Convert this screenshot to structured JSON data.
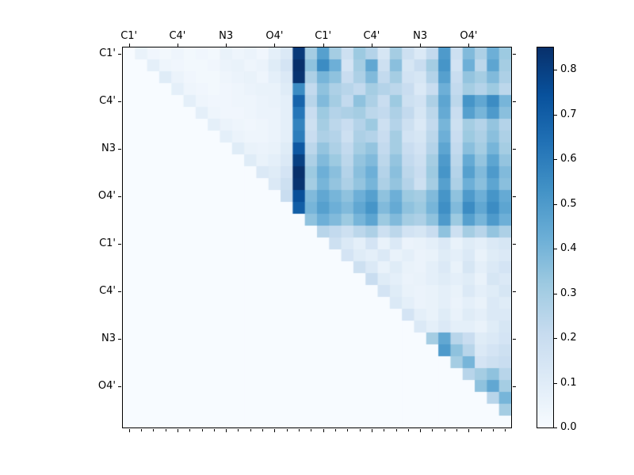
{
  "figure": {
    "background": "#ffffff",
    "axis_color": "#000000"
  },
  "chart_data": {
    "type": "heatmap",
    "title": "",
    "size": 32,
    "x_tick_labels": [
      "C1'",
      "C4'",
      "N3",
      "O4'",
      "C1'",
      "C4'",
      "N3",
      "O4'"
    ],
    "y_tick_labels": [
      "C1'",
      "C4'",
      "N3",
      "O4'",
      "C1'",
      "C4'",
      "N3",
      "O4'"
    ],
    "tick_positions": [
      0,
      4,
      8,
      12,
      16,
      20,
      24,
      28
    ],
    "vmin": 0.0,
    "vmax": 0.85,
    "colormap": "Blues",
    "colormap_stops": [
      "#f7fbff",
      "#deebf7",
      "#c6dbef",
      "#9ecae1",
      "#6baed6",
      "#4292c6",
      "#2171b5",
      "#08519c",
      "#08306b"
    ],
    "colorbar": {
      "tick_values": [
        0.0,
        0.1,
        0.2,
        0.3,
        0.4,
        0.5,
        0.6,
        0.7,
        0.8
      ],
      "tick_labels": [
        "0.0",
        "0.1",
        "0.2",
        "0.3",
        "0.4",
        "0.5",
        "0.6",
        "0.7",
        "0.8"
      ]
    },
    "matrix": [
      [
        0,
        0.06,
        0.03,
        0.02,
        0.04,
        0.02,
        0.03,
        0.02,
        0.06,
        0.04,
        0.05,
        0.03,
        0.08,
        0.12,
        0.82,
        0.3,
        0.48,
        0.3,
        0.18,
        0.32,
        0.26,
        0.14,
        0.3,
        0.18,
        0.12,
        0.22,
        0.5,
        0.18,
        0.38,
        0.28,
        0.42,
        0.32
      ],
      [
        0,
        0,
        0.08,
        0.04,
        0.03,
        0.02,
        0.02,
        0.03,
        0.05,
        0.06,
        0.04,
        0.05,
        0.1,
        0.15,
        0.85,
        0.35,
        0.55,
        0.42,
        0.15,
        0.3,
        0.45,
        0.18,
        0.36,
        0.14,
        0.2,
        0.3,
        0.52,
        0.16,
        0.42,
        0.24,
        0.46,
        0.3
      ],
      [
        0,
        0,
        0,
        0.1,
        0.05,
        0.03,
        0.02,
        0.02,
        0.04,
        0.05,
        0.06,
        0.04,
        0.08,
        0.12,
        0.84,
        0.28,
        0.4,
        0.35,
        0.2,
        0.28,
        0.38,
        0.22,
        0.3,
        0.16,
        0.14,
        0.26,
        0.48,
        0.2,
        0.34,
        0.3,
        0.38,
        0.28
      ],
      [
        0,
        0,
        0,
        0,
        0.08,
        0.04,
        0.03,
        0.02,
        0.03,
        0.04,
        0.05,
        0.06,
        0.06,
        0.1,
        0.55,
        0.22,
        0.35,
        0.28,
        0.25,
        0.22,
        0.3,
        0.26,
        0.24,
        0.2,
        0.12,
        0.2,
        0.42,
        0.22,
        0.3,
        0.26,
        0.32,
        0.24
      ],
      [
        0,
        0,
        0,
        0,
        0,
        0.08,
        0.04,
        0.03,
        0.03,
        0.04,
        0.04,
        0.05,
        0.06,
        0.08,
        0.68,
        0.25,
        0.38,
        0.3,
        0.22,
        0.35,
        0.28,
        0.2,
        0.32,
        0.18,
        0.16,
        0.28,
        0.46,
        0.24,
        0.52,
        0.45,
        0.55,
        0.4
      ],
      [
        0,
        0,
        0,
        0,
        0,
        0,
        0.08,
        0.04,
        0.03,
        0.03,
        0.04,
        0.05,
        0.05,
        0.08,
        0.62,
        0.2,
        0.32,
        0.26,
        0.28,
        0.3,
        0.24,
        0.22,
        0.28,
        0.22,
        0.14,
        0.24,
        0.44,
        0.2,
        0.48,
        0.4,
        0.5,
        0.36
      ],
      [
        0,
        0,
        0,
        0,
        0,
        0,
        0,
        0.08,
        0.05,
        0.04,
        0.03,
        0.04,
        0.05,
        0.08,
        0.58,
        0.18,
        0.3,
        0.24,
        0.2,
        0.26,
        0.32,
        0.18,
        0.26,
        0.18,
        0.12,
        0.22,
        0.4,
        0.18,
        0.3,
        0.26,
        0.34,
        0.26
      ],
      [
        0,
        0,
        0,
        0,
        0,
        0,
        0,
        0,
        0.08,
        0.05,
        0.04,
        0.04,
        0.05,
        0.08,
        0.6,
        0.2,
        0.28,
        0.26,
        0.18,
        0.28,
        0.26,
        0.2,
        0.3,
        0.16,
        0.14,
        0.24,
        0.42,
        0.2,
        0.32,
        0.28,
        0.36,
        0.28
      ],
      [
        0,
        0,
        0,
        0,
        0,
        0,
        0,
        0,
        0,
        0.1,
        0.06,
        0.05,
        0.06,
        0.1,
        0.72,
        0.24,
        0.34,
        0.28,
        0.22,
        0.3,
        0.34,
        0.22,
        0.3,
        0.2,
        0.16,
        0.26,
        0.46,
        0.22,
        0.36,
        0.3,
        0.4,
        0.3
      ],
      [
        0,
        0,
        0,
        0,
        0,
        0,
        0,
        0,
        0,
        0,
        0.1,
        0.06,
        0.08,
        0.12,
        0.8,
        0.28,
        0.38,
        0.32,
        0.24,
        0.34,
        0.38,
        0.24,
        0.34,
        0.22,
        0.18,
        0.3,
        0.5,
        0.24,
        0.44,
        0.34,
        0.46,
        0.34
      ],
      [
        0,
        0,
        0,
        0,
        0,
        0,
        0,
        0,
        0,
        0,
        0,
        0.12,
        0.1,
        0.15,
        0.85,
        0.32,
        0.42,
        0.36,
        0.26,
        0.36,
        0.42,
        0.26,
        0.36,
        0.24,
        0.2,
        0.32,
        0.52,
        0.26,
        0.48,
        0.38,
        0.5,
        0.38
      ],
      [
        0,
        0,
        0,
        0,
        0,
        0,
        0,
        0,
        0,
        0,
        0,
        0,
        0.12,
        0.18,
        0.84,
        0.3,
        0.4,
        0.34,
        0.28,
        0.34,
        0.4,
        0.28,
        0.34,
        0.26,
        0.18,
        0.3,
        0.48,
        0.28,
        0.42,
        0.36,
        0.46,
        0.36
      ],
      [
        0,
        0,
        0,
        0,
        0,
        0,
        0,
        0,
        0,
        0,
        0,
        0,
        0,
        0.2,
        0.75,
        0.38,
        0.45,
        0.4,
        0.35,
        0.42,
        0.48,
        0.35,
        0.42,
        0.32,
        0.3,
        0.38,
        0.52,
        0.35,
        0.5,
        0.42,
        0.52,
        0.44
      ],
      [
        0,
        0,
        0,
        0,
        0,
        0,
        0,
        0,
        0,
        0,
        0,
        0,
        0,
        0,
        0.7,
        0.4,
        0.48,
        0.42,
        0.38,
        0.45,
        0.52,
        0.38,
        0.44,
        0.35,
        0.32,
        0.4,
        0.54,
        0.38,
        0.55,
        0.45,
        0.55,
        0.46
      ],
      [
        0,
        0,
        0,
        0,
        0,
        0,
        0,
        0,
        0,
        0,
        0,
        0,
        0,
        0,
        0,
        0.35,
        0.42,
        0.38,
        0.32,
        0.4,
        0.46,
        0.32,
        0.38,
        0.3,
        0.28,
        0.35,
        0.5,
        0.32,
        0.48,
        0.4,
        0.5,
        0.42
      ],
      [
        0,
        0,
        0,
        0,
        0,
        0,
        0,
        0,
        0,
        0,
        0,
        0,
        0,
        0,
        0,
        0,
        0.25,
        0.22,
        0.18,
        0.24,
        0.28,
        0.18,
        0.24,
        0.16,
        0.14,
        0.2,
        0.35,
        0.18,
        0.3,
        0.25,
        0.34,
        0.28
      ],
      [
        0,
        0,
        0,
        0,
        0,
        0,
        0,
        0,
        0,
        0,
        0,
        0,
        0,
        0,
        0,
        0,
        0,
        0.18,
        0.12,
        0.08,
        0.15,
        0.06,
        0.12,
        0.05,
        0.06,
        0.08,
        0.12,
        0.06,
        0.1,
        0.08,
        0.12,
        0.14
      ],
      [
        0,
        0,
        0,
        0,
        0,
        0,
        0,
        0,
        0,
        0,
        0,
        0,
        0,
        0,
        0,
        0,
        0,
        0,
        0.15,
        0.1,
        0.08,
        0.12,
        0.06,
        0.08,
        0.05,
        0.06,
        0.1,
        0.08,
        0.12,
        0.06,
        0.1,
        0.12
      ],
      [
        0,
        0,
        0,
        0,
        0,
        0,
        0,
        0,
        0,
        0,
        0,
        0,
        0,
        0,
        0,
        0,
        0,
        0,
        0,
        0.18,
        0.12,
        0.06,
        0.1,
        0.06,
        0.05,
        0.08,
        0.12,
        0.06,
        0.14,
        0.08,
        0.12,
        0.15
      ],
      [
        0,
        0,
        0,
        0,
        0,
        0,
        0,
        0,
        0,
        0,
        0,
        0,
        0,
        0,
        0,
        0,
        0,
        0,
        0,
        0,
        0.2,
        0.1,
        0.08,
        0.05,
        0.06,
        0.08,
        0.1,
        0.08,
        0.1,
        0.06,
        0.14,
        0.12
      ],
      [
        0,
        0,
        0,
        0,
        0,
        0,
        0,
        0,
        0,
        0,
        0,
        0,
        0,
        0,
        0,
        0,
        0,
        0,
        0,
        0,
        0,
        0.15,
        0.1,
        0.06,
        0.05,
        0.06,
        0.08,
        0.06,
        0.12,
        0.08,
        0.1,
        0.14
      ],
      [
        0,
        0,
        0,
        0,
        0,
        0,
        0,
        0,
        0,
        0,
        0,
        0,
        0,
        0,
        0,
        0,
        0,
        0,
        0,
        0,
        0,
        0,
        0.12,
        0.08,
        0.05,
        0.06,
        0.08,
        0.05,
        0.08,
        0.06,
        0.12,
        0.1
      ],
      [
        0,
        0,
        0,
        0,
        0,
        0,
        0,
        0,
        0,
        0,
        0,
        0,
        0,
        0,
        0,
        0,
        0,
        0,
        0,
        0,
        0,
        0,
        0,
        0.15,
        0.08,
        0.06,
        0.1,
        0.06,
        0.1,
        0.08,
        0.12,
        0.12
      ],
      [
        0,
        0,
        0,
        0,
        0,
        0,
        0,
        0,
        0,
        0,
        0,
        0,
        0,
        0,
        0,
        0,
        0,
        0,
        0,
        0,
        0,
        0,
        0,
        0,
        0.12,
        0.08,
        0.12,
        0.08,
        0.08,
        0.06,
        0.1,
        0.14
      ],
      [
        0,
        0,
        0,
        0,
        0,
        0,
        0,
        0,
        0,
        0,
        0,
        0,
        0,
        0,
        0,
        0,
        0,
        0,
        0,
        0,
        0,
        0,
        0,
        0,
        0,
        0.3,
        0.45,
        0.25,
        0.2,
        0.1,
        0.12,
        0.15
      ],
      [
        0,
        0,
        0,
        0,
        0,
        0,
        0,
        0,
        0,
        0,
        0,
        0,
        0,
        0,
        0,
        0,
        0,
        0,
        0,
        0,
        0,
        0,
        0,
        0,
        0,
        0,
        0.5,
        0.35,
        0.25,
        0.12,
        0.15,
        0.18
      ],
      [
        0,
        0,
        0,
        0,
        0,
        0,
        0,
        0,
        0,
        0,
        0,
        0,
        0,
        0,
        0,
        0,
        0,
        0,
        0,
        0,
        0,
        0,
        0,
        0,
        0,
        0,
        0,
        0.3,
        0.4,
        0.15,
        0.18,
        0.2
      ],
      [
        0,
        0,
        0,
        0,
        0,
        0,
        0,
        0,
        0,
        0,
        0,
        0,
        0,
        0,
        0,
        0,
        0,
        0,
        0,
        0,
        0,
        0,
        0,
        0,
        0,
        0,
        0,
        0,
        0.25,
        0.3,
        0.35,
        0.25
      ],
      [
        0,
        0,
        0,
        0,
        0,
        0,
        0,
        0,
        0,
        0,
        0,
        0,
        0,
        0,
        0,
        0,
        0,
        0,
        0,
        0,
        0,
        0,
        0,
        0,
        0,
        0,
        0,
        0,
        0,
        0.35,
        0.45,
        0.3
      ],
      [
        0,
        0,
        0,
        0,
        0,
        0,
        0,
        0,
        0,
        0,
        0,
        0,
        0,
        0,
        0,
        0,
        0,
        0,
        0,
        0,
        0,
        0,
        0,
        0,
        0,
        0,
        0,
        0,
        0,
        0,
        0.25,
        0.4
      ],
      [
        0,
        0,
        0,
        0,
        0,
        0,
        0,
        0,
        0,
        0,
        0,
        0,
        0,
        0,
        0,
        0,
        0,
        0,
        0,
        0,
        0,
        0,
        0,
        0,
        0,
        0,
        0,
        0,
        0,
        0,
        0,
        0.3
      ],
      [
        0,
        0,
        0,
        0,
        0,
        0,
        0,
        0,
        0,
        0,
        0,
        0,
        0,
        0,
        0,
        0,
        0,
        0,
        0,
        0,
        0,
        0,
        0,
        0,
        0,
        0,
        0,
        0,
        0,
        0,
        0,
        0
      ]
    ]
  }
}
